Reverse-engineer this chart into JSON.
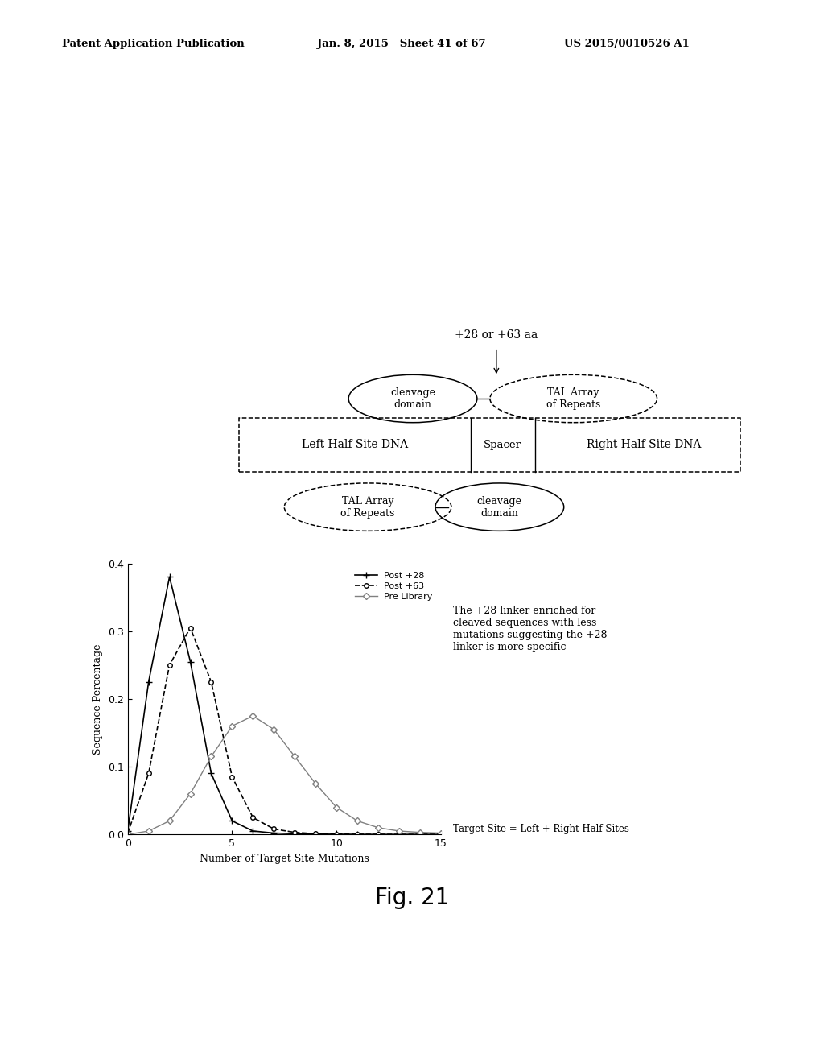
{
  "header_left": "Patent Application Publication",
  "header_mid": "Jan. 8, 2015   Sheet 41 of 67",
  "header_right": "US 2015/0010526 A1",
  "fig_label": "Fig. 21",
  "label_above": "+28 or +63 aa",
  "top_ellipse_left": "cleavage\ndomain",
  "top_ellipse_right": "TAL Array\nof Repeats",
  "box_left": "Left Half Site DNA",
  "box_mid": "Spacer",
  "box_right": "Right Half Site DNA",
  "bot_ellipse_left": "TAL Array\nof Repeats",
  "bot_ellipse_right": "cleavage\ndomain",
  "xlabel": "Number of Target Site Mutations",
  "xlabel2": "Target Site = Left + Right Half Sites",
  "ylabel": "Sequence Percentage",
  "ylim": [
    0,
    0.4
  ],
  "xlim": [
    0,
    15
  ],
  "yticks": [
    0,
    0.1,
    0.2,
    0.3,
    0.4
  ],
  "xticks": [
    0,
    5,
    10,
    15
  ],
  "legend_entries": [
    "Post +28",
    "Post +63",
    "Pre Library"
  ],
  "annotation": "The +28 linker enriched for\ncleaved sequences with less\nmutations suggesting the +28\nlinker is more specific",
  "post28_x": [
    0,
    1,
    2,
    3,
    4,
    5,
    6,
    7,
    8,
    9,
    10,
    11,
    12,
    13,
    14,
    15
  ],
  "post28_y": [
    0.005,
    0.225,
    0.38,
    0.255,
    0.09,
    0.02,
    0.005,
    0.002,
    0.001,
    0.0005,
    0.0002,
    0.0001,
    0.0,
    0.0,
    0.0,
    0.0
  ],
  "post63_x": [
    0,
    1,
    2,
    3,
    4,
    5,
    6,
    7,
    8,
    9,
    10,
    11,
    12,
    13,
    14,
    15
  ],
  "post63_y": [
    0.002,
    0.09,
    0.25,
    0.305,
    0.225,
    0.085,
    0.025,
    0.008,
    0.003,
    0.001,
    0.0005,
    0.0002,
    0.0001,
    0.0,
    0.0,
    0.0
  ],
  "prelib_x": [
    0,
    1,
    2,
    3,
    4,
    5,
    6,
    7,
    8,
    9,
    10,
    11,
    12,
    13,
    14,
    15
  ],
  "prelib_y": [
    0.0,
    0.005,
    0.02,
    0.06,
    0.115,
    0.16,
    0.175,
    0.155,
    0.115,
    0.075,
    0.04,
    0.02,
    0.01,
    0.005,
    0.003,
    0.002
  ],
  "background_color": "#ffffff",
  "line_color": "#000000"
}
